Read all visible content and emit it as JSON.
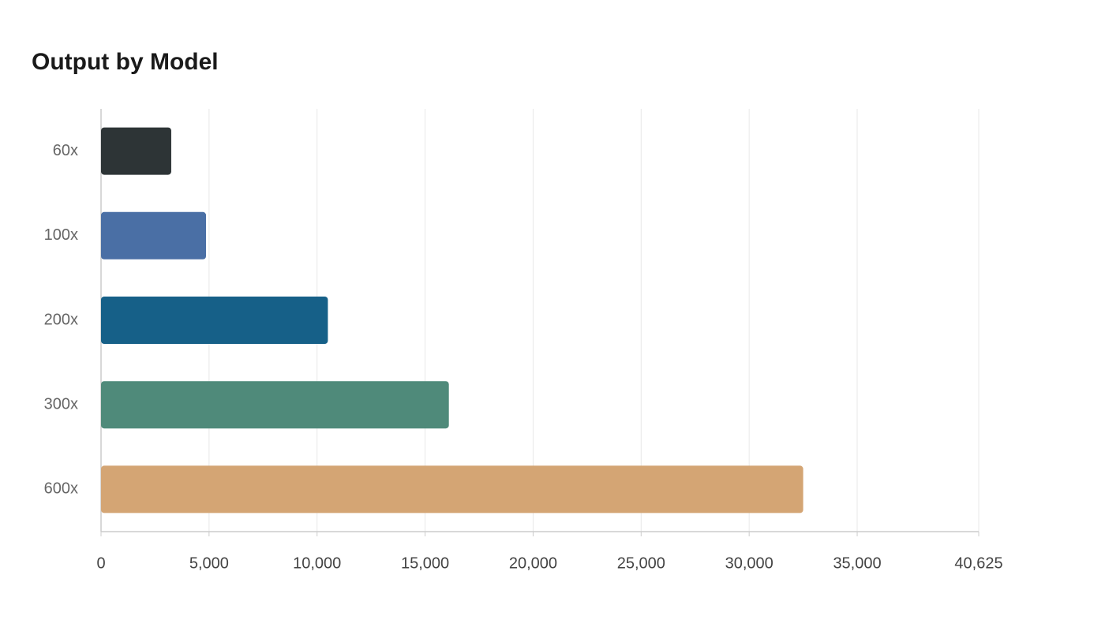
{
  "chart_data": {
    "type": "bar",
    "orientation": "horizontal",
    "title": "Output by Model",
    "categories": [
      "60x",
      "100x",
      "200x",
      "300x",
      "600x"
    ],
    "values": [
      3250,
      4860,
      10500,
      16100,
      32500
    ],
    "colors": [
      "#2d3436",
      "#4a6fa5",
      "#166088",
      "#4f8a7a",
      "#d4a574"
    ],
    "xlim": [
      0,
      40625
    ],
    "xticks": [
      0,
      {
        "value": 5000,
        "label": "5,000"
      },
      {
        "value": 10000,
        "label": "10,000"
      },
      {
        "value": 15000,
        "label": "15,000"
      },
      {
        "value": 20000,
        "label": "20,000"
      },
      {
        "value": 25000,
        "label": "25,000"
      },
      {
        "value": 30000,
        "label": "30,000"
      },
      {
        "value": 35000,
        "label": "35,000"
      },
      {
        "value": 40625,
        "label": "40,625"
      }
    ],
    "grid": true
  }
}
